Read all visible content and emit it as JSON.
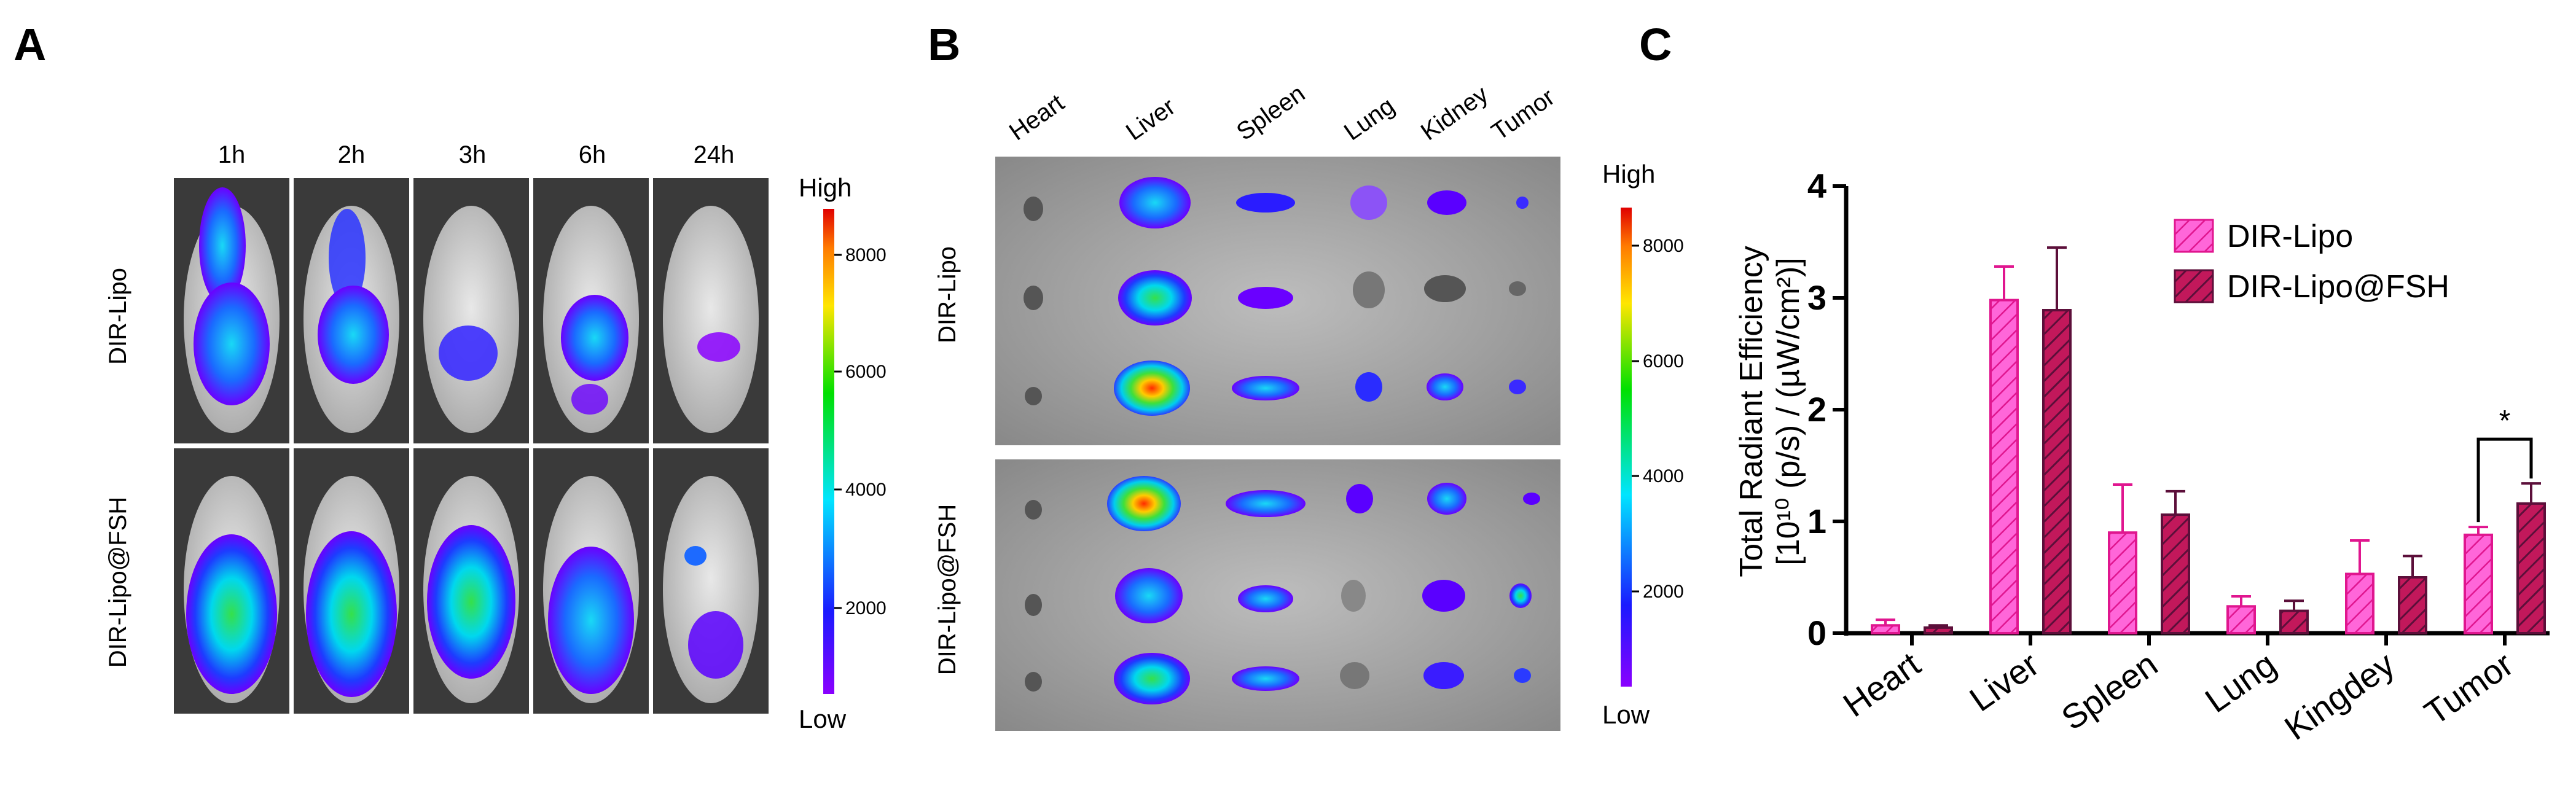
{
  "panels": {
    "a": {
      "letter": "A",
      "time_labels": [
        "1h",
        "2h",
        "3h",
        "6h",
        "24h"
      ],
      "row_labels": [
        "DIR-Lipo",
        "DIR-Lipo@FSH"
      ],
      "scale": {
        "high": "High",
        "low": "Low",
        "ticks": [
          "8000",
          "6000",
          "4000",
          "2000"
        ]
      }
    },
    "b": {
      "letter": "B",
      "organ_labels": [
        "Heart",
        "Liver",
        "Spleen",
        "Lung",
        "Kidney",
        "Tumor"
      ],
      "row_labels": [
        "DIR-Lipo",
        "DIR-Lipo@FSH"
      ],
      "scale": {
        "high": "High",
        "low": "Low",
        "ticks": [
          "8000",
          "6000",
          "4000",
          "2000"
        ]
      }
    },
    "c": {
      "letter": "C"
    }
  },
  "colors": {
    "dir_lipo_fill": "#ff66d9",
    "dir_lipo_edge": "#e0168f",
    "fsh_fill": "#c2185b",
    "fsh_edge": "#5c0f3a",
    "sig_mark": "#000000"
  },
  "chart_data": {
    "type": "bar",
    "categories": [
      "Heart",
      "Liver",
      "Spleen",
      "Lung",
      "Kingdey",
      "Tumor"
    ],
    "series": [
      {
        "name": "DIR-Lipo",
        "values": [
          0.07,
          2.98,
          0.9,
          0.24,
          0.53,
          0.88
        ],
        "errors": [
          0.05,
          0.3,
          0.43,
          0.09,
          0.3,
          0.07
        ]
      },
      {
        "name": "DIR-Lipo@FSH",
        "values": [
          0.05,
          2.89,
          1.06,
          0.2,
          0.5,
          1.16
        ],
        "errors": [
          0.02,
          0.56,
          0.21,
          0.09,
          0.19,
          0.18
        ]
      }
    ],
    "ylabel_line1": "Total Radiant Efficiency",
    "ylabel_line2": "[10¹⁰ (p/s) / (µW/cm²)]",
    "ylim": [
      0,
      4
    ],
    "yticks": [
      0,
      1,
      2,
      3,
      4
    ],
    "ytick_labels": [
      "0",
      "1",
      "2",
      "3",
      "4"
    ],
    "legend_position": "top-right",
    "significance": {
      "category": "Tumor",
      "label": "*"
    }
  }
}
